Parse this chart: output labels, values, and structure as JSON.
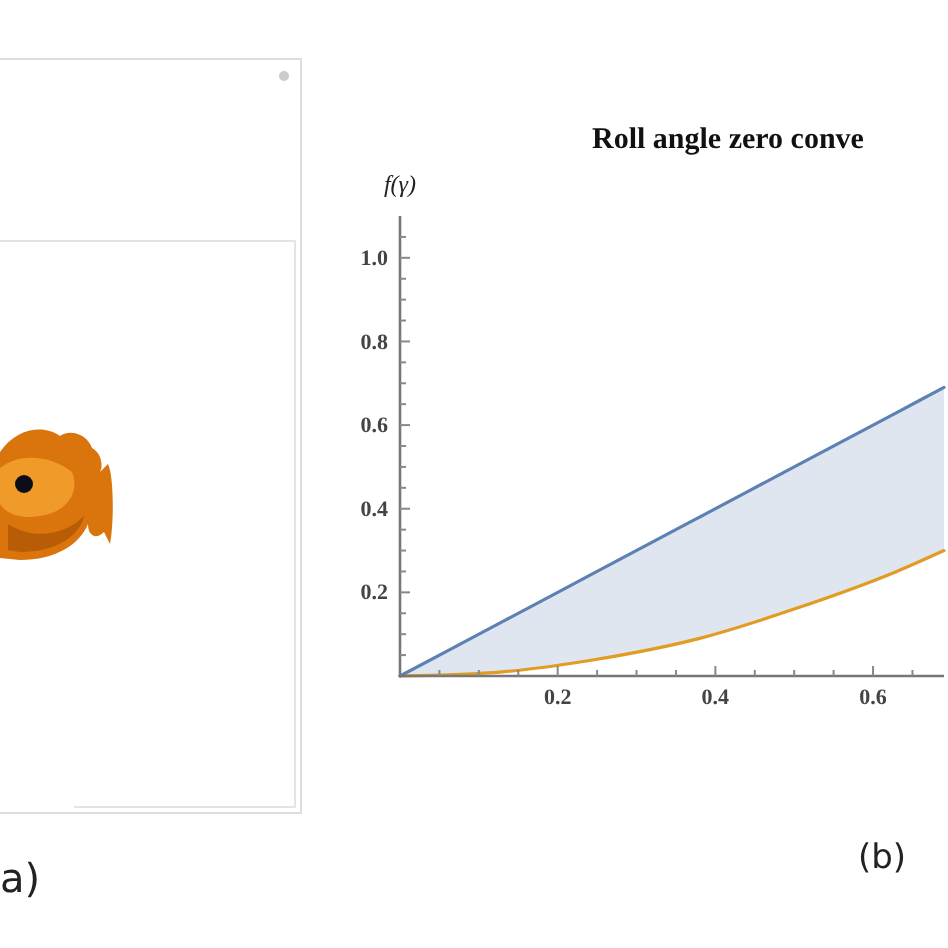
{
  "chart_data": {
    "type": "line",
    "title": "Roll angle zero conve",
    "ylabel": "f(γ)",
    "annotations": [
      "a)",
      "(b)"
    ],
    "x": [
      0,
      0.13,
      0.25,
      0.38,
      0.5,
      0.63,
      0.69
    ],
    "series": [
      {
        "color": "#5e81b5",
        "values": [
          0,
          0.13,
          0.25,
          0.38,
          0.5,
          0.63,
          0.69
        ],
        "lower": [
          0,
          0.01,
          0.04,
          0.09,
          0.16,
          0.25,
          0.3
        ],
        "upper": [
          0,
          0.13,
          0.25,
          0.38,
          0.5,
          0.63,
          0.69
        ]
      },
      {
        "color": "#e19c24",
        "values": [
          0,
          0.01,
          0.04,
          0.09,
          0.16,
          0.25,
          0.3
        ]
      }
    ],
    "xlim": [
      0,
      0.69
    ],
    "ylim": [
      0,
      1.1
    ],
    "xticks": [
      {
        "value": 0.05,
        "label": null
      },
      {
        "value": 0.1,
        "label": null
      },
      {
        "value": 0.15,
        "label": null
      },
      0.2,
      {
        "value": 0.25,
        "label": null
      },
      {
        "value": 0.3,
        "label": null
      },
      {
        "value": 0.35,
        "label": null
      },
      0.4,
      {
        "value": 0.45,
        "label": null
      },
      {
        "value": 0.5,
        "label": null
      },
      {
        "value": 0.55,
        "label": null
      },
      0.6,
      {
        "value": 0.65,
        "label": null
      }
    ],
    "yticks": [
      {
        "value": 0.05,
        "label": null
      },
      {
        "value": 0.1,
        "label": null
      },
      {
        "value": 0.15,
        "label": null
      },
      0.2,
      {
        "value": 0.25,
        "label": null
      },
      {
        "value": 0.3,
        "label": null
      },
      {
        "value": 0.35,
        "label": null
      },
      0.4,
      {
        "value": 0.45,
        "label": null
      },
      {
        "value": 0.5,
        "label": null
      },
      {
        "value": 0.55,
        "label": null
      },
      0.6,
      {
        "value": 0.65,
        "label": null
      },
      {
        "value": 0.7,
        "label": null
      },
      {
        "value": 0.75,
        "label": null
      },
      0.8,
      {
        "value": 0.85,
        "label": null
      },
      {
        "value": 0.9,
        "label": null
      },
      {
        "value": 0.95,
        "label": null
      },
      {
        "value": 1,
        "label": "1.0"
      },
      {
        "value": 1.05,
        "label": null
      }
    ],
    "grid": false
  }
}
